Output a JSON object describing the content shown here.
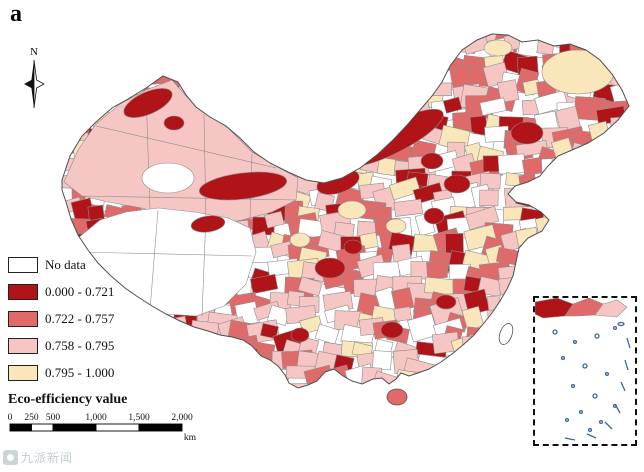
{
  "panel_label": "a",
  "compass": {
    "label": "N"
  },
  "legend": {
    "title": "Eco-efficiency value",
    "items": [
      {
        "label": "No data",
        "color": "#ffffff"
      },
      {
        "label": "0.000 - 0.721",
        "color": "#b01318"
      },
      {
        "label": "0.722 - 0.757",
        "color": "#e06a6a"
      },
      {
        "label": "0.758 - 0.795",
        "color": "#f6c6c4"
      },
      {
        "label": "0.795 - 1.000",
        "color": "#f9e6ba"
      }
    ]
  },
  "scale_bar": {
    "tick_labels": [
      "0",
      "250",
      "500",
      "1,000",
      "1,500",
      "2,000"
    ],
    "unit": "km"
  },
  "map": {
    "cell_border_color": "#8d8d8d",
    "outline_color": "#4f4f4f",
    "inset_island_color": "#3c63a8"
  },
  "watermark": {
    "text": "九派新闻"
  }
}
